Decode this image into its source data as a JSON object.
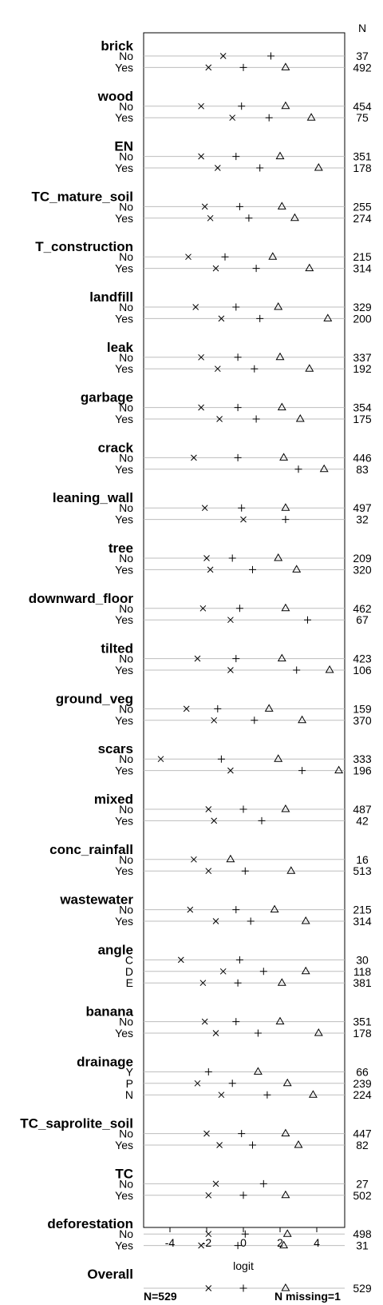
{
  "chart_data": {
    "type": "scatter",
    "markers": [
      "x",
      "+",
      "triangle"
    ],
    "xlabel": "logit",
    "xticks": [
      -4,
      -2,
      0,
      2,
      4
    ],
    "xlim": [
      -5.2,
      5.3
    ],
    "n_header": "N",
    "footer_left": "N=529",
    "footer_right": "N missing=1",
    "overall_label": "Overall",
    "overall": {
      "x": -1.9,
      "plus": 0.0,
      "tri": 2.3,
      "n": "529"
    },
    "groups": [
      {
        "name": "brick",
        "levels": [
          {
            "label": "No",
            "x": -1.1,
            "plus": 1.5,
            "tri": null,
            "n": "37"
          },
          {
            "label": "Yes",
            "x": -1.9,
            "plus": 0.0,
            "tri": 2.3,
            "n": "492"
          }
        ]
      },
      {
        "name": "wood",
        "levels": [
          {
            "label": "No",
            "x": -2.3,
            "plus": -0.1,
            "tri": 2.3,
            "n": "454"
          },
          {
            "label": "Yes",
            "x": -0.6,
            "plus": 1.4,
            "tri": 3.7,
            "n": "75"
          }
        ]
      },
      {
        "name": "EN",
        "levels": [
          {
            "label": "No",
            "x": -2.3,
            "plus": -0.4,
            "tri": 2.0,
            "n": "351"
          },
          {
            "label": "Yes",
            "x": -1.4,
            "plus": 0.9,
            "tri": 4.1,
            "n": "178"
          }
        ]
      },
      {
        "name": "TC_mature_soil",
        "levels": [
          {
            "label": "No",
            "x": -2.1,
            "plus": -0.2,
            "tri": 2.1,
            "n": "255"
          },
          {
            "label": "Yes",
            "x": -1.8,
            "plus": 0.3,
            "tri": 2.8,
            "n": "274"
          }
        ]
      },
      {
        "name": "T_construction",
        "levels": [
          {
            "label": "No",
            "x": -3.0,
            "plus": -1.0,
            "tri": 1.6,
            "n": "215"
          },
          {
            "label": "Yes",
            "x": -1.5,
            "plus": 0.7,
            "tri": 3.6,
            "n": "314"
          }
        ]
      },
      {
        "name": "landfill",
        "levels": [
          {
            "label": "No",
            "x": -2.6,
            "plus": -0.4,
            "tri": 1.9,
            "n": "329"
          },
          {
            "label": "Yes",
            "x": -1.2,
            "plus": 0.9,
            "tri": 4.6,
            "n": "200"
          }
        ]
      },
      {
        "name": "leak",
        "levels": [
          {
            "label": "No",
            "x": -2.3,
            "plus": -0.3,
            "tri": 2.0,
            "n": "337"
          },
          {
            "label": "Yes",
            "x": -1.4,
            "plus": 0.6,
            "tri": 3.6,
            "n": "192"
          }
        ]
      },
      {
        "name": "garbage",
        "levels": [
          {
            "label": "No",
            "x": -2.3,
            "plus": -0.3,
            "tri": 2.1,
            "n": "354"
          },
          {
            "label": "Yes",
            "x": -1.3,
            "plus": 0.7,
            "tri": 3.1,
            "n": "175"
          }
        ]
      },
      {
        "name": "crack",
        "levels": [
          {
            "label": "No",
            "x": -2.7,
            "plus": -0.3,
            "tri": 2.2,
            "n": "446"
          },
          {
            "label": "Yes",
            "x": null,
            "plus": 3.0,
            "tri": 4.4,
            "n": "83"
          }
        ]
      },
      {
        "name": "leaning_wall",
        "levels": [
          {
            "label": "No",
            "x": -2.1,
            "plus": -0.1,
            "tri": 2.3,
            "n": "497"
          },
          {
            "label": "Yes",
            "x": 0.0,
            "plus": 2.3,
            "tri": null,
            "n": "32"
          }
        ]
      },
      {
        "name": "tree",
        "levels": [
          {
            "label": "No",
            "x": -2.0,
            "plus": -0.6,
            "tri": 1.9,
            "n": "209"
          },
          {
            "label": "Yes",
            "x": -1.8,
            "plus": 0.5,
            "tri": 2.9,
            "n": "320"
          }
        ]
      },
      {
        "name": "downward_floor",
        "levels": [
          {
            "label": "No",
            "x": -2.2,
            "plus": -0.2,
            "tri": 2.3,
            "n": "462"
          },
          {
            "label": "Yes",
            "x": -0.7,
            "plus": 3.5,
            "tri": null,
            "n": "67"
          }
        ]
      },
      {
        "name": "tilted",
        "levels": [
          {
            "label": "No",
            "x": -2.5,
            "plus": -0.4,
            "tri": 2.1,
            "n": "423"
          },
          {
            "label": "Yes",
            "x": -0.7,
            "plus": 2.9,
            "tri": 4.7,
            "n": "106"
          }
        ]
      },
      {
        "name": "ground_veg",
        "levels": [
          {
            "label": "No",
            "x": -3.1,
            "plus": -1.4,
            "tri": 1.4,
            "n": "159"
          },
          {
            "label": "Yes",
            "x": -1.6,
            "plus": 0.6,
            "tri": 3.2,
            "n": "370"
          }
        ]
      },
      {
        "name": "scars",
        "levels": [
          {
            "label": "No",
            "x": -4.5,
            "plus": -1.2,
            "tri": 1.9,
            "n": "333"
          },
          {
            "label": "Yes",
            "x": -0.7,
            "plus": 3.2,
            "tri": 5.2,
            "n": "196"
          }
        ]
      },
      {
        "name": "mixed",
        "levels": [
          {
            "label": "No",
            "x": -1.9,
            "plus": 0.0,
            "tri": 2.3,
            "n": "487"
          },
          {
            "label": "Yes",
            "x": -1.6,
            "plus": 1.0,
            "tri": null,
            "n": "42"
          }
        ]
      },
      {
        "name": "conc_rainfall",
        "levels": [
          {
            "label": "No",
            "x": -2.7,
            "plus": null,
            "tri": -0.7,
            "n": "16"
          },
          {
            "label": "Yes",
            "x": -1.9,
            "plus": 0.1,
            "tri": 2.6,
            "n": "513"
          }
        ]
      },
      {
        "name": "wastewater",
        "levels": [
          {
            "label": "No",
            "x": -2.9,
            "plus": -0.4,
            "tri": 1.7,
            "n": "215"
          },
          {
            "label": "Yes",
            "x": -1.5,
            "plus": 0.4,
            "tri": 3.4,
            "n": "314"
          }
        ]
      },
      {
        "name": "angle",
        "levels": [
          {
            "label": "C",
            "x": -3.4,
            "plus": -0.2,
            "tri": null,
            "n": "30"
          },
          {
            "label": "D",
            "x": -1.1,
            "plus": 1.1,
            "tri": 3.4,
            "n": "118"
          },
          {
            "label": "E",
            "x": -2.2,
            "plus": -0.3,
            "tri": 2.1,
            "n": "381"
          }
        ]
      },
      {
        "name": "banana",
        "levels": [
          {
            "label": "No",
            "x": -2.1,
            "plus": -0.4,
            "tri": 2.0,
            "n": "351"
          },
          {
            "label": "Yes",
            "x": -1.5,
            "plus": 0.8,
            "tri": 4.1,
            "n": "178"
          }
        ]
      },
      {
        "name": "drainage",
        "levels": [
          {
            "label": "Y",
            "x": null,
            "plus": -1.9,
            "tri": 0.8,
            "n": "66"
          },
          {
            "label": "P",
            "x": -2.5,
            "plus": -0.6,
            "tri": 2.4,
            "n": "239"
          },
          {
            "label": "N",
            "x": -1.2,
            "plus": 1.3,
            "tri": 3.8,
            "n": "224"
          }
        ]
      },
      {
        "name": "TC_saprolite_soil",
        "levels": [
          {
            "label": "No",
            "x": -2.0,
            "plus": -0.1,
            "tri": 2.3,
            "n": "447"
          },
          {
            "label": "Yes",
            "x": -1.3,
            "plus": 0.5,
            "tri": 3.0,
            "n": "82"
          }
        ]
      },
      {
        "name": "TC",
        "levels": [
          {
            "label": "No",
            "x": -1.5,
            "plus": 1.1,
            "tri": null,
            "n": "27"
          },
          {
            "label": "Yes",
            "x": -1.9,
            "plus": 0.0,
            "tri": 2.3,
            "n": "502"
          }
        ]
      },
      {
        "name": "deforestation",
        "levels": [
          {
            "label": "No",
            "x": -1.9,
            "plus": 0.1,
            "tri": 2.4,
            "n": "498"
          },
          {
            "label": "Yes",
            "x": -2.3,
            "plus": -0.3,
            "tri": 2.2,
            "n": "31"
          }
        ]
      }
    ]
  }
}
